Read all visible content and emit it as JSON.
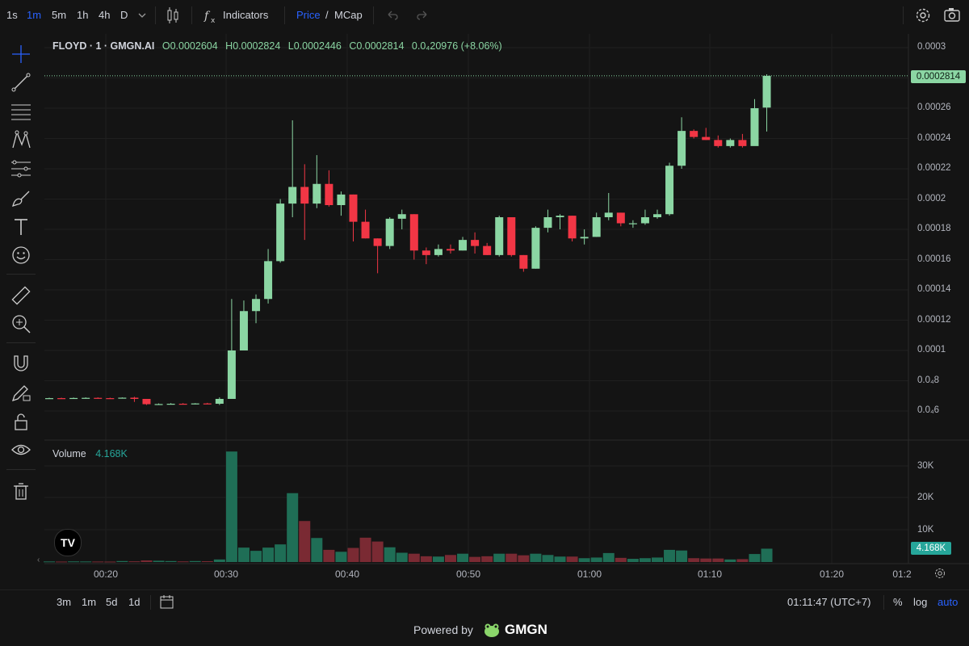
{
  "timeframes": [
    "1s",
    "1m",
    "5m",
    "1h",
    "4h",
    "D"
  ],
  "active_timeframe": "1m",
  "toolbar": {
    "indicators_label": "Indicators",
    "price_label": "Price",
    "slash": "/",
    "mcap_label": "MCap"
  },
  "legend": {
    "symbol": "FLOYD · 1 · GMGN.AI",
    "open": "O0.0002604",
    "high": "H0.0002824",
    "low": "L0.0002446",
    "close": "C0.0002814",
    "change": "0.0₄20976 (+8.06%)"
  },
  "price_axis": [
    "0.0003",
    "0.00026",
    "0.00024",
    "0.00022",
    "0.0002",
    "0.00018",
    "0.00016",
    "0.00014",
    "0.00012",
    "0.0001",
    "0.0₄8",
    "0.0₄6"
  ],
  "last_price": "0.0002814",
  "volume": {
    "title": "Volume",
    "value": "4.168K",
    "axis": [
      "30K",
      "20K",
      "10K"
    ],
    "badge": "4.168K"
  },
  "time_axis": [
    "00:20",
    "00:30",
    "00:40",
    "00:50",
    "01:00",
    "01:10",
    "01:20",
    "01:2"
  ],
  "bottom": {
    "ranges": [
      "3m",
      "1m",
      "5d",
      "1d"
    ],
    "clock": "01:11:47 (UTC+7)",
    "percent": "%",
    "log": "log",
    "auto": "auto"
  },
  "footer": {
    "powered_by": "Powered by",
    "brand": "GMGN"
  },
  "colors": {
    "up": "#8bd6a3",
    "down": "#f23645",
    "vol_up": "#1f6e56",
    "vol_down": "#7a2a33",
    "accent": "#2962ff"
  },
  "chart_data": {
    "type": "candlestick",
    "x_start": "00:15",
    "interval_minutes": 1,
    "candles": [
      {
        "o": 6.83e-05,
        "h": 6.88e-05,
        "l": 6.8e-05,
        "c": 6.85e-05
      },
      {
        "o": 6.85e-05,
        "h": 6.88e-05,
        "l": 6.82e-05,
        "c": 6.84e-05
      },
      {
        "o": 6.84e-05,
        "h": 6.89e-05,
        "l": 6.82e-05,
        "c": 6.86e-05
      },
      {
        "o": 6.86e-05,
        "h": 6.9e-05,
        "l": 6.83e-05,
        "c": 6.87e-05
      },
      {
        "o": 6.87e-05,
        "h": 6.9e-05,
        "l": 6.84e-05,
        "c": 6.85e-05
      },
      {
        "o": 6.85e-05,
        "h": 6.88e-05,
        "l": 6.82e-05,
        "c": 6.84e-05
      },
      {
        "o": 6.84e-05,
        "h": 6.9e-05,
        "l": 6.83e-05,
        "c": 6.88e-05
      },
      {
        "o": 6.88e-05,
        "h": 6.94e-05,
        "l": 6.6e-05,
        "c": 6.8e-05
      },
      {
        "o": 6.8e-05,
        "h": 6.8e-05,
        "l": 6.4e-05,
        "c": 6.45e-05
      },
      {
        "o": 6.45e-05,
        "h": 6.5e-05,
        "l": 6.4e-05,
        "c": 6.46e-05
      },
      {
        "o": 6.46e-05,
        "h": 6.52e-05,
        "l": 6.43e-05,
        "c": 6.48e-05
      },
      {
        "o": 6.48e-05,
        "h": 6.52e-05,
        "l": 6.44e-05,
        "c": 6.46e-05
      },
      {
        "o": 6.46e-05,
        "h": 6.52e-05,
        "l": 6.44e-05,
        "c": 6.5e-05
      },
      {
        "o": 6.5e-05,
        "h": 6.54e-05,
        "l": 6.46e-05,
        "c": 6.48e-05
      },
      {
        "o": 6.48e-05,
        "h": 6.9e-05,
        "l": 6.4e-05,
        "c": 6.8e-05
      },
      {
        "o": 6.8e-05,
        "h": 0.000134,
        "l": 6.8e-05,
        "c": 0.0001
      },
      {
        "o": 0.0001,
        "h": 0.000133,
        "l": 0.0001,
        "c": 0.000126
      },
      {
        "o": 0.000126,
        "h": 0.000137,
        "l": 0.000118,
        "c": 0.000134
      },
      {
        "o": 0.000134,
        "h": 0.000167,
        "l": 0.000131,
        "c": 0.000159
      },
      {
        "o": 0.000159,
        "h": 0.0002,
        "l": 0.000158,
        "c": 0.000197
      },
      {
        "o": 0.000197,
        "h": 0.000252,
        "l": 0.000188,
        "c": 0.000208
      },
      {
        "o": 0.000208,
        "h": 0.000223,
        "l": 0.000173,
        "c": 0.000197
      },
      {
        "o": 0.000197,
        "h": 0.000229,
        "l": 0.000194,
        "c": 0.00021
      },
      {
        "o": 0.00021,
        "h": 0.000219,
        "l": 0.000195,
        "c": 0.000196
      },
      {
        "o": 0.000196,
        "h": 0.000205,
        "l": 0.000189,
        "c": 0.000203
      },
      {
        "o": 0.000203,
        "h": 0.000203,
        "l": 0.000172,
        "c": 0.000185
      },
      {
        "o": 0.000185,
        "h": 0.000193,
        "l": 0.000174,
        "c": 0.000174
      },
      {
        "o": 0.000174,
        "h": 0.000174,
        "l": 0.000151,
        "c": 0.000169
      },
      {
        "o": 0.000169,
        "h": 0.000188,
        "l": 0.000167,
        "c": 0.000187
      },
      {
        "o": 0.000187,
        "h": 0.000193,
        "l": 0.00018,
        "c": 0.00019
      },
      {
        "o": 0.00019,
        "h": 0.00019,
        "l": 0.00016,
        "c": 0.000166
      },
      {
        "o": 0.000166,
        "h": 0.000168,
        "l": 0.000157,
        "c": 0.000163
      },
      {
        "o": 0.000163,
        "h": 0.00017,
        "l": 0.000162,
        "c": 0.000167
      },
      {
        "o": 0.000167,
        "h": 0.00017,
        "l": 0.000164,
        "c": 0.000166
      },
      {
        "o": 0.000166,
        "h": 0.000175,
        "l": 0.000166,
        "c": 0.000173
      },
      {
        "o": 0.000173,
        "h": 0.000178,
        "l": 0.000164,
        "c": 0.000169
      },
      {
        "o": 0.000169,
        "h": 0.000171,
        "l": 0.000163,
        "c": 0.000163
      },
      {
        "o": 0.000163,
        "h": 0.000189,
        "l": 0.000162,
        "c": 0.000188
      },
      {
        "o": 0.000188,
        "h": 0.000188,
        "l": 0.000162,
        "c": 0.000163
      },
      {
        "o": 0.000163,
        "h": 0.000163,
        "l": 0.000152,
        "c": 0.000154
      },
      {
        "o": 0.000154,
        "h": 0.000182,
        "l": 0.000154,
        "c": 0.000181
      },
      {
        "o": 0.000181,
        "h": 0.000193,
        "l": 0.000178,
        "c": 0.000188
      },
      {
        "o": 0.000188,
        "h": 0.00019,
        "l": 0.00018,
        "c": 0.000189
      },
      {
        "o": 0.000189,
        "h": 0.000189,
        "l": 0.000172,
        "c": 0.000174
      },
      {
        "o": 0.000174,
        "h": 0.00018,
        "l": 0.00017,
        "c": 0.000175
      },
      {
        "o": 0.000175,
        "h": 0.000191,
        "l": 0.000175,
        "c": 0.000188
      },
      {
        "o": 0.000188,
        "h": 0.000204,
        "l": 0.000186,
        "c": 0.000191
      },
      {
        "o": 0.000191,
        "h": 0.000191,
        "l": 0.000182,
        "c": 0.000184
      },
      {
        "o": 0.000184,
        "h": 0.000186,
        "l": 0.000181,
        "c": 0.000184
      },
      {
        "o": 0.000184,
        "h": 0.000193,
        "l": 0.000183,
        "c": 0.000188
      },
      {
        "o": 0.000188,
        "h": 0.000193,
        "l": 0.000187,
        "c": 0.00019
      },
      {
        "o": 0.00019,
        "h": 0.000224,
        "l": 0.000189,
        "c": 0.000222
      },
      {
        "o": 0.000222,
        "h": 0.000254,
        "l": 0.00022,
        "c": 0.000245
      },
      {
        "o": 0.000245,
        "h": 0.000246,
        "l": 0.00024,
        "c": 0.000241
      },
      {
        "o": 0.000241,
        "h": 0.000247,
        "l": 0.000239,
        "c": 0.000239
      },
      {
        "o": 0.000239,
        "h": 0.000242,
        "l": 0.000234,
        "c": 0.000235
      },
      {
        "o": 0.000235,
        "h": 0.00024,
        "l": 0.000234,
        "c": 0.000239
      },
      {
        "o": 0.000239,
        "h": 0.000243,
        "l": 0.000234,
        "c": 0.000235
      },
      {
        "o": 0.000235,
        "h": 0.000266,
        "l": 0.000236,
        "c": 0.00026
      },
      {
        "o": 0.0002604,
        "h": 0.0002824,
        "l": 0.0002446,
        "c": 0.0002814
      }
    ],
    "volume": [
      180,
      150,
      200,
      180,
      160,
      140,
      300,
      220,
      500,
      400,
      300,
      200,
      300,
      250,
      800,
      34500,
      4500,
      3500,
      4500,
      5500,
      21500,
      12800,
      7500,
      3800,
      3200,
      4400,
      7600,
      6400,
      4600,
      2900,
      2600,
      1800,
      1700,
      2200,
      2600,
      1600,
      1800,
      2600,
      2600,
      2100,
      2600,
      2200,
      1700,
      1700,
      1200,
      1400,
      2800,
      1300,
      1000,
      1200,
      1400,
      3800,
      3600,
      1200,
      1100,
      1100,
      800,
      900,
      2500,
      4168
    ],
    "up_volume_same_as_candle": true,
    "y_scale": "linear",
    "price_range": [
      4.8e-05,
      0.0003
    ],
    "volume_range": [
      0,
      35000
    ]
  }
}
